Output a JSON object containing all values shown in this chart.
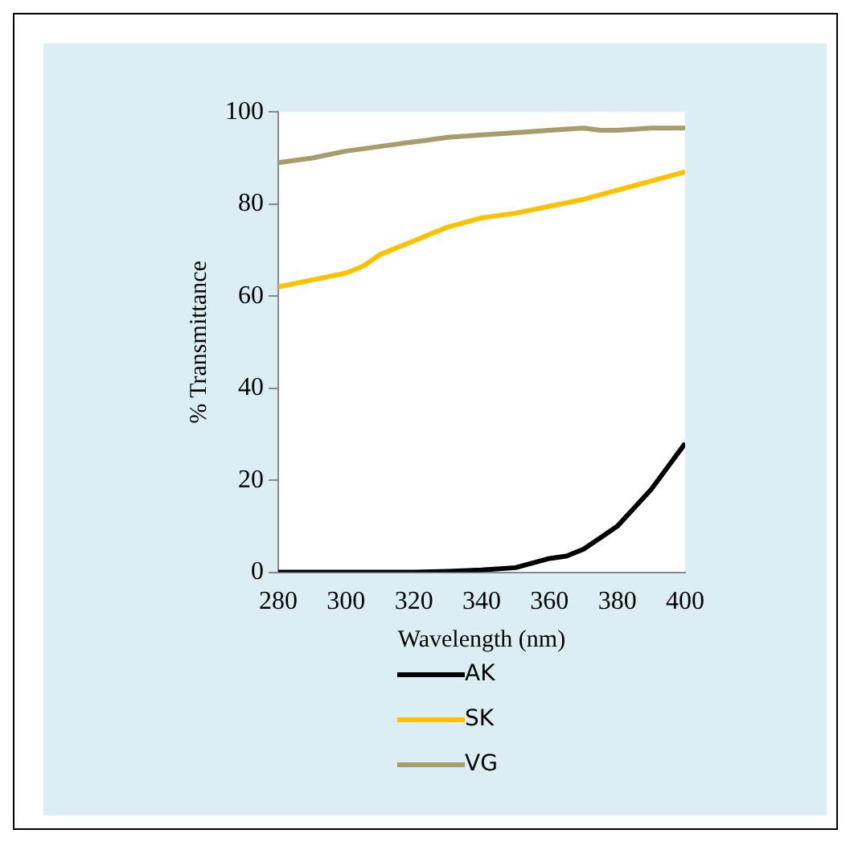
{
  "chart_data": {
    "type": "line",
    "xlabel": "Wavelength (nm)",
    "ylabel": "% Transmittance",
    "xlim": [
      280,
      400
    ],
    "xticks": [
      280,
      300,
      320,
      340,
      360,
      380,
      400
    ],
    "ylim": [
      0,
      100
    ],
    "yticks": [
      0,
      20,
      40,
      60,
      80,
      100
    ],
    "grid": false,
    "legend": "bottom",
    "marker": "none",
    "line_style": "solid",
    "series": [
      {
        "name": "AK",
        "color": "#000000",
        "x": [
          280,
          300,
          320,
          330,
          340,
          350,
          355,
          360,
          365,
          370,
          375,
          380,
          385,
          390,
          395,
          400
        ],
        "values": [
          0,
          0,
          0,
          0.2,
          0.5,
          1,
          2,
          3,
          3.5,
          5,
          7.5,
          10,
          14,
          18,
          23,
          28
        ]
      },
      {
        "name": "SK",
        "color": "#ffc000",
        "x": [
          280,
          290,
          300,
          305,
          310,
          320,
          330,
          340,
          350,
          360,
          370,
          380,
          390,
          400
        ],
        "values": [
          62,
          63.5,
          65,
          66.5,
          69,
          72,
          75,
          77,
          78,
          79.5,
          81,
          83,
          85,
          87
        ]
      },
      {
        "name": "VG",
        "color": "#a69c6c",
        "x": [
          280,
          290,
          300,
          310,
          320,
          330,
          340,
          350,
          360,
          370,
          375,
          380,
          390,
          400
        ],
        "values": [
          89,
          90,
          91.5,
          92.5,
          93.5,
          94.5,
          95,
          95.5,
          96,
          96.5,
          96,
          96,
          96.5,
          96.5
        ]
      }
    ]
  }
}
